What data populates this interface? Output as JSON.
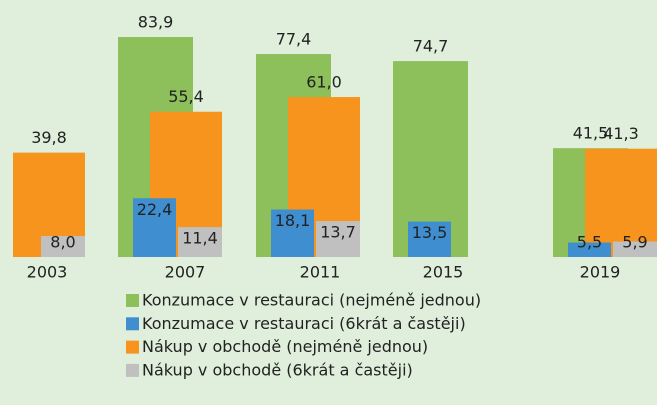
{
  "chart_data": {
    "type": "bar",
    "categories": [
      "2003",
      "2007",
      "2011",
      "2015",
      "2019"
    ],
    "ylim": [
      0,
      90
    ],
    "series": [
      {
        "name": "Konzumace v restauraci (nejméně jednou)",
        "color": "#8dbf5a",
        "values": [
          null,
          83.9,
          77.4,
          74.7,
          41.5
        ],
        "value_labels": [
          null,
          "83,9",
          "77,4",
          "74,7",
          "41,5"
        ]
      },
      {
        "name": "Konzumace v restauraci (6krát a častěji)",
        "color": "#3f8fd0",
        "values": [
          null,
          22.4,
          18.1,
          13.5,
          5.5
        ],
        "value_labels": [
          null,
          "22,4",
          "18,1",
          "13,5",
          "5,5"
        ]
      },
      {
        "name": "Nákup v obchodě (nejméně jednou)",
        "color": "#f7941d",
        "values": [
          39.8,
          55.4,
          61.0,
          null,
          41.3
        ],
        "value_labels": [
          "39,8",
          "55,4",
          "61,0",
          null,
          "41,3"
        ]
      },
      {
        "name": "Nákup v obchodě (6krát a častěji)",
        "color": "#c0c0c0",
        "values": [
          8.0,
          11.4,
          13.7,
          null,
          5.9
        ],
        "value_labels": [
          "8,0",
          "11,4",
          "13,7",
          null,
          "5,9"
        ]
      }
    ]
  }
}
